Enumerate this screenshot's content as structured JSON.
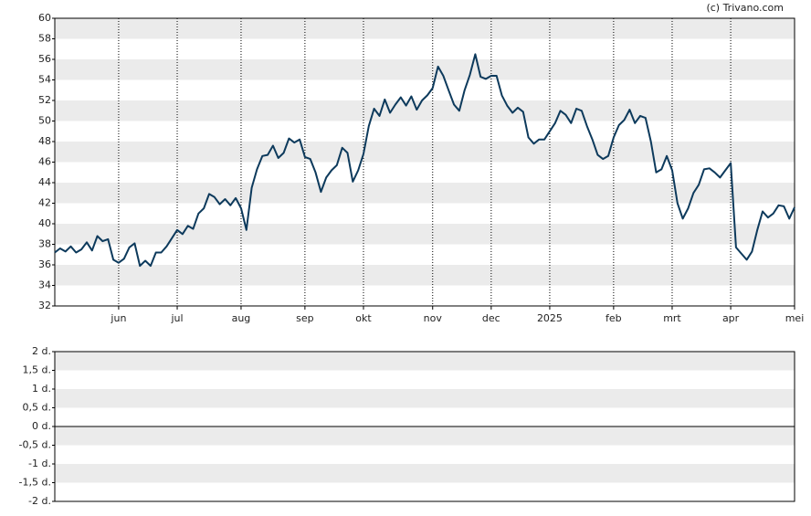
{
  "chart_data": [
    {
      "type": "line",
      "source": "(c) Trivano.com",
      "color": "#0d3a5c",
      "categories": [
        null,
        null,
        null,
        null,
        null,
        null,
        null,
        null,
        null,
        null,
        null,
        null,
        "jun",
        null,
        null,
        null,
        null,
        null,
        null,
        null,
        null,
        null,
        null,
        "jul",
        null,
        null,
        null,
        null,
        null,
        null,
        null,
        null,
        null,
        null,
        null,
        "aug",
        null,
        null,
        null,
        null,
        null,
        null,
        null,
        null,
        null,
        null,
        null,
        "sep",
        null,
        null,
        null,
        null,
        null,
        null,
        null,
        null,
        null,
        null,
        "okt",
        null,
        null,
        null,
        null,
        null,
        null,
        null,
        null,
        null,
        null,
        null,
        null,
        "nov",
        null,
        null,
        null,
        null,
        null,
        null,
        null,
        null,
        null,
        null,
        "dec",
        null,
        null,
        null,
        null,
        null,
        null,
        null,
        null,
        null,
        null,
        "2025",
        null,
        null,
        null,
        null,
        null,
        null,
        null,
        null,
        null,
        null,
        null,
        "feb",
        null,
        null,
        null,
        null,
        null,
        null,
        null,
        null,
        null,
        null,
        "mrt",
        null,
        null,
        null,
        null,
        null,
        null,
        null,
        null,
        null,
        null,
        "apr",
        null,
        null,
        null,
        null,
        null,
        null,
        null,
        null,
        null,
        null,
        null,
        "mei"
      ],
      "values": [
        37.2,
        37.6,
        37.3,
        37.8,
        37.2,
        37.5,
        38.2,
        37.4,
        38.8,
        38.3,
        38.5,
        36.5,
        36.2,
        36.6,
        37.7,
        38.1,
        35.9,
        36.4,
        35.9,
        37.2,
        37.2,
        37.8,
        38.6,
        39.4,
        39.0,
        39.8,
        39.5,
        41.0,
        41.5,
        42.9,
        42.6,
        41.9,
        42.4,
        41.8,
        42.5,
        41.5,
        39.4,
        43.5,
        45.3,
        46.6,
        46.7,
        47.6,
        46.4,
        46.9,
        48.3,
        47.9,
        48.2,
        46.5,
        46.3,
        45.0,
        43.1,
        44.5,
        45.2,
        45.7,
        47.4,
        46.9,
        44.1,
        45.2,
        46.8,
        49.5,
        51.2,
        50.5,
        52.1,
        50.8,
        51.6,
        52.3,
        51.5,
        52.4,
        51.1,
        52.0,
        52.5,
        53.2,
        55.3,
        54.4,
        53.0,
        51.6,
        51.0,
        53.0,
        54.5,
        56.5,
        54.3,
        54.1,
        54.4,
        54.4,
        52.5,
        51.5,
        50.8,
        51.3,
        50.9,
        48.4,
        47.8,
        48.2,
        48.2,
        49.0,
        49.8,
        51.0,
        50.6,
        49.8,
        51.2,
        51.0,
        49.5,
        48.2,
        46.7,
        46.3,
        46.6,
        48.4,
        49.6,
        50.1,
        51.1,
        49.8,
        50.5,
        50.3,
        48.0,
        45.0,
        45.3,
        46.6,
        45.2,
        42.0,
        40.5,
        41.5,
        43.0,
        43.8,
        45.3,
        45.4,
        45.0,
        44.5,
        45.2,
        45.9,
        37.7,
        37.1,
        36.5,
        37.3,
        39.4,
        41.2,
        40.6,
        41.0,
        41.8,
        41.7,
        40.5,
        41.6
      ],
      "ylim": [
        32,
        60
      ],
      "yticks": [
        32,
        34,
        36,
        38,
        40,
        42,
        44,
        46,
        48,
        50,
        52,
        54,
        56,
        58,
        60
      ],
      "grid": true
    },
    {
      "type": "bar",
      "ylim": [
        -2,
        2
      ],
      "yticks": [
        {
          "value": -2,
          "label": "-2 d."
        },
        {
          "value": -1.5,
          "label": "-1,5 d."
        },
        {
          "value": -1,
          "label": "-1 d."
        },
        {
          "value": -0.5,
          "label": "-0,5 d."
        },
        {
          "value": 0,
          "label": "0 d."
        },
        {
          "value": 0.5,
          "label": "0,5 d."
        },
        {
          "value": 1,
          "label": "1 d."
        },
        {
          "value": 1.5,
          "label": "1,5 d."
        },
        {
          "value": 2,
          "label": "2 d."
        }
      ],
      "grid": true
    }
  ]
}
